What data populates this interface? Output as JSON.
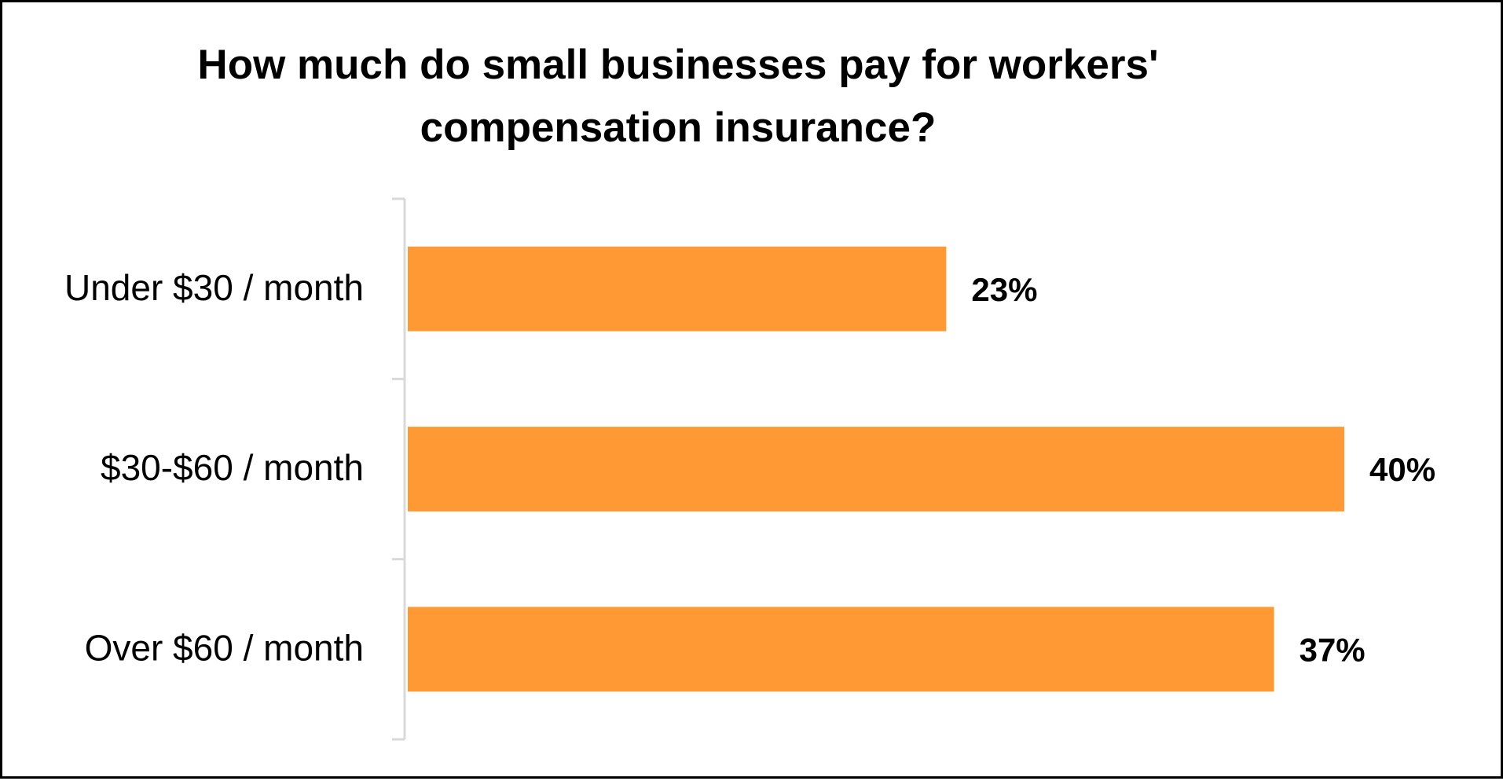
{
  "chart_data": {
    "type": "bar",
    "orientation": "horizontal",
    "title": "How much do small businesses pay for workers' compensation insurance?",
    "categories": [
      "Under $30 / month",
      "$30-$60 / month",
      "Over $60 / month"
    ],
    "values": [
      23,
      40,
      37
    ],
    "value_labels": [
      "23%",
      "40%",
      "37%"
    ],
    "xlim": [
      0,
      40
    ],
    "grid": false,
    "legend": "none",
    "bar_color": "#FF9933",
    "axis_color": "#D9D9D9"
  }
}
